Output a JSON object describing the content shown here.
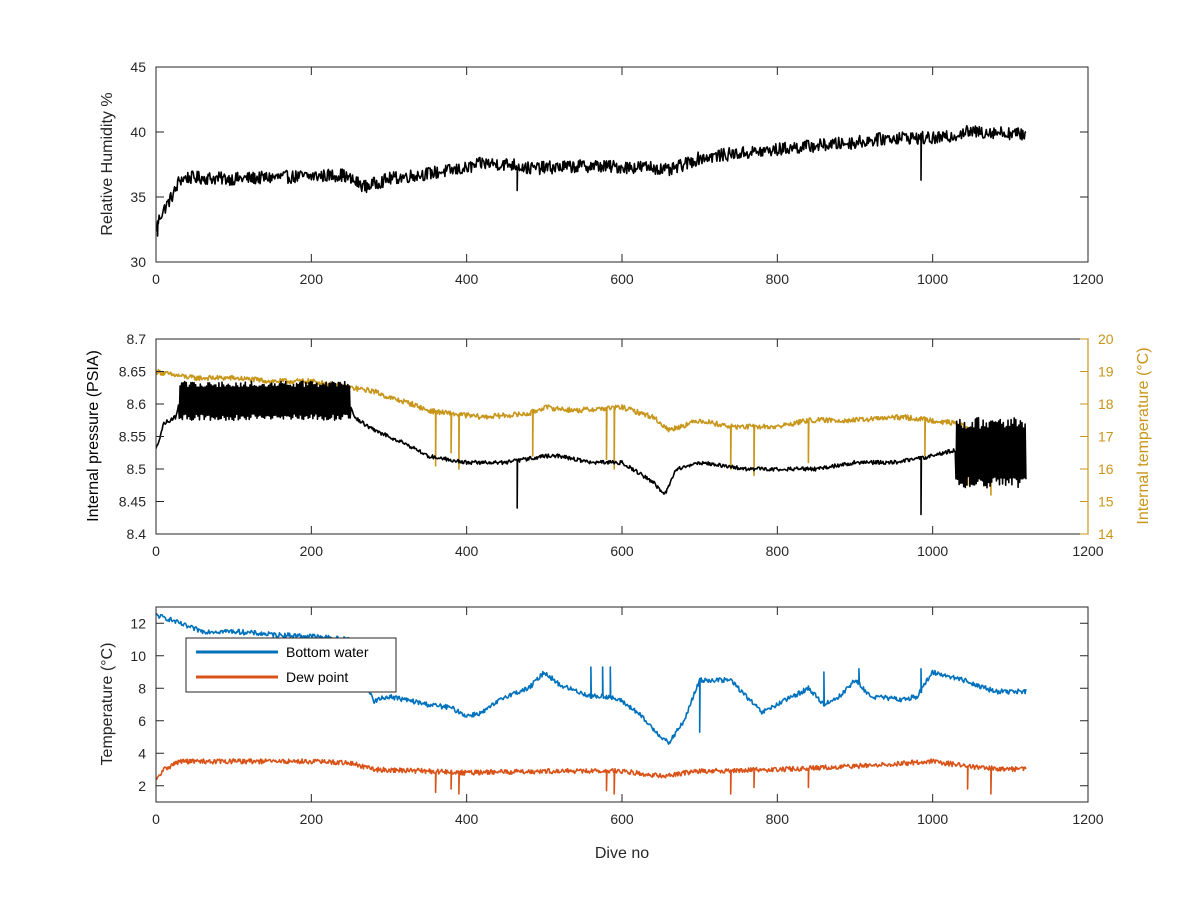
{
  "chart_data": [
    {
      "type": "line",
      "xlabel": "",
      "ylabel": "Relative Humidity %",
      "xlim": [
        0,
        1200
      ],
      "ylim": [
        30,
        45
      ],
      "xticks": [
        0,
        200,
        400,
        600,
        800,
        1000,
        1200
      ],
      "yticks": [
        30,
        35,
        40,
        45
      ],
      "grid": false,
      "series": [
        {
          "color": "#000000",
          "noise": 0.5,
          "x": [
            0,
            5,
            15,
            25,
            30,
            40,
            100,
            200,
            240,
            255,
            270,
            300,
            350,
            400,
            420,
            460,
            480,
            520,
            560,
            600,
            640,
            660,
            680,
            700,
            740,
            780,
            820,
            860,
            900,
            940,
            960,
            1000,
            1020,
            1040,
            1080,
            1120
          ],
          "y": [
            32.5,
            33.5,
            34.5,
            35.5,
            36.3,
            36.5,
            36.4,
            36.6,
            36.7,
            36.2,
            35.8,
            36.4,
            36.8,
            37.2,
            37.6,
            37.5,
            37.2,
            37.3,
            37.4,
            37.3,
            37.3,
            37.0,
            37.5,
            38.0,
            38.3,
            38.5,
            38.8,
            39.0,
            39.2,
            39.5,
            39.6,
            39.5,
            39.6,
            40.0,
            40.0,
            39.8
          ]
        }
      ],
      "spikes": [
        {
          "x": 465,
          "y": 35.5
        },
        {
          "x": 985,
          "y": 36.3
        },
        {
          "x": 2,
          "y": 32.0
        }
      ]
    },
    {
      "type": "line",
      "xlabel": "",
      "ylabel": "Internal pressure (PSIA)",
      "y2label": "Internal temperature (°C)",
      "xlim": [
        0,
        1200
      ],
      "ylim": [
        8.4,
        8.7
      ],
      "y2lim": [
        14,
        20
      ],
      "xticks": [
        0,
        200,
        400,
        600,
        800,
        1000,
        1200
      ],
      "yticks": [
        8.4,
        8.45,
        8.5,
        8.55,
        8.6,
        8.65,
        8.7
      ],
      "y2ticks": [
        14,
        15,
        16,
        17,
        18,
        19,
        20
      ],
      "grid": false,
      "series": [
        {
          "axis": "right",
          "color": "#c8961a",
          "noise": 0.08,
          "x": [
            0,
            20,
            50,
            100,
            150,
            200,
            250,
            280,
            300,
            330,
            350,
            380,
            420,
            480,
            500,
            540,
            600,
            640,
            660,
            700,
            740,
            800,
            840,
            900,
            960,
            1000,
            1030,
            1060,
            1090,
            1120
          ],
          "y": [
            19.0,
            18.9,
            18.8,
            18.8,
            18.7,
            18.7,
            18.5,
            18.4,
            18.2,
            18.0,
            17.8,
            17.7,
            17.6,
            17.7,
            17.9,
            17.8,
            17.9,
            17.6,
            17.2,
            17.5,
            17.3,
            17.3,
            17.5,
            17.5,
            17.6,
            17.5,
            17.4,
            17.1,
            16.8,
            16.7
          ]
        },
        {
          "axis": "left",
          "color": "#000000",
          "noise": 0.003,
          "x": [
            0,
            10,
            25,
            30,
            100,
            200,
            250,
            255,
            280,
            300,
            320,
            350,
            400,
            450,
            500,
            520,
            560,
            600,
            640,
            655,
            670,
            700,
            760,
            800,
            850,
            900,
            950,
            1000,
            1030,
            1060,
            1120
          ],
          "y": [
            8.53,
            8.57,
            8.58,
            8.6,
            8.6,
            8.6,
            8.6,
            8.58,
            8.56,
            8.55,
            8.54,
            8.52,
            8.51,
            8.51,
            8.52,
            8.52,
            8.51,
            8.51,
            8.48,
            8.46,
            8.5,
            8.51,
            8.5,
            8.5,
            8.5,
            8.51,
            8.51,
            8.52,
            8.53,
            8.52,
            8.5
          ]
        }
      ],
      "dense_band": [
        {
          "x_start": 30,
          "x_end": 250,
          "y_low": 8.58,
          "y_high": 8.63
        },
        {
          "x_start": 1030,
          "x_end": 1120,
          "y_low": 8.48,
          "y_high": 8.57
        }
      ],
      "spikes_left": [
        {
          "x": 465,
          "y": 8.44
        },
        {
          "x": 985,
          "y": 8.43
        }
      ],
      "spikes_right": [
        {
          "x": 360,
          "y": 16.1
        },
        {
          "x": 380,
          "y": 16.5
        },
        {
          "x": 390,
          "y": 16.0
        },
        {
          "x": 485,
          "y": 16.4
        },
        {
          "x": 580,
          "y": 16.3
        },
        {
          "x": 590,
          "y": 16.0
        },
        {
          "x": 740,
          "y": 16.0
        },
        {
          "x": 770,
          "y": 15.8
        },
        {
          "x": 840,
          "y": 16.2
        },
        {
          "x": 990,
          "y": 16.4
        },
        {
          "x": 1045,
          "y": 15.5
        },
        {
          "x": 1075,
          "y": 15.2
        }
      ]
    },
    {
      "type": "line",
      "xlabel": "Dive no",
      "ylabel": "Temperature (°C)",
      "xlim": [
        0,
        1200
      ],
      "ylim": [
        1,
        13
      ],
      "xticks": [
        0,
        200,
        400,
        600,
        800,
        1000,
        1200
      ],
      "yticks": [
        2,
        4,
        6,
        8,
        10,
        12
      ],
      "grid": false,
      "legend_position": "top-left",
      "series": [
        {
          "name": "Bottom water",
          "color": "#0072bd",
          "noise": 0.15,
          "x": [
            0,
            20,
            40,
            60,
            100,
            150,
            200,
            250,
            280,
            300,
            350,
            380,
            400,
            420,
            450,
            480,
            500,
            520,
            560,
            580,
            600,
            620,
            640,
            660,
            680,
            700,
            740,
            760,
            780,
            800,
            820,
            840,
            860,
            880,
            900,
            920,
            960,
            980,
            1000,
            1040,
            1080,
            1120
          ],
          "y": [
            12.5,
            12.2,
            11.8,
            11.5,
            11.5,
            11.3,
            11.2,
            11.0,
            7.2,
            7.5,
            7.0,
            6.8,
            6.3,
            6.5,
            7.5,
            8.0,
            9.0,
            8.2,
            7.5,
            7.5,
            7.2,
            6.5,
            5.5,
            4.6,
            6.0,
            8.5,
            8.5,
            7.5,
            6.5,
            7.0,
            7.5,
            8.0,
            7.0,
            7.5,
            8.5,
            7.5,
            7.3,
            7.5,
            9.0,
            8.5,
            7.8,
            7.8
          ]
        },
        {
          "name": "Dew point",
          "color": "#d95319",
          "noise": 0.15,
          "x": [
            0,
            10,
            30,
            100,
            200,
            250,
            280,
            350,
            400,
            500,
            600,
            650,
            700,
            800,
            900,
            1000,
            1060,
            1120
          ],
          "y": [
            2.3,
            3.0,
            3.5,
            3.5,
            3.5,
            3.4,
            3.0,
            2.9,
            2.8,
            2.9,
            2.9,
            2.6,
            2.9,
            3.0,
            3.2,
            3.5,
            3.1,
            3.0
          ]
        }
      ],
      "spikes_bw": [
        {
          "x": 560,
          "y": 9.3
        },
        {
          "x": 575,
          "y": 9.3
        },
        {
          "x": 585,
          "y": 9.3
        },
        {
          "x": 700,
          "y": 5.3
        },
        {
          "x": 860,
          "y": 9.0
        },
        {
          "x": 905,
          "y": 9.2
        },
        {
          "x": 985,
          "y": 9.2
        }
      ],
      "spikes_dp": [
        {
          "x": 360,
          "y": 1.6
        },
        {
          "x": 380,
          "y": 1.8
        },
        {
          "x": 390,
          "y": 1.5
        },
        {
          "x": 580,
          "y": 1.7
        },
        {
          "x": 590,
          "y": 1.5
        },
        {
          "x": 740,
          "y": 1.5
        },
        {
          "x": 770,
          "y": 1.9
        },
        {
          "x": 840,
          "y": 1.9
        },
        {
          "x": 1045,
          "y": 1.8
        },
        {
          "x": 1075,
          "y": 1.5
        }
      ]
    }
  ]
}
